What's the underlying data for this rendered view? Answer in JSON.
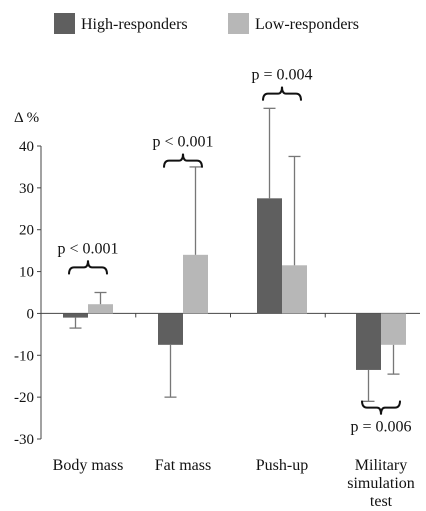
{
  "chart_data": {
    "type": "bar",
    "ylabel": "Δ %",
    "ylim": [
      -30,
      40
    ],
    "yticks": [
      40,
      30,
      20,
      10,
      0,
      -10,
      -20,
      -30
    ],
    "categories": [
      "Body mass",
      "Fat mass",
      "Push-up",
      "Military simulation test"
    ],
    "category_lines": [
      [
        "Body mass"
      ],
      [
        "Fat mass"
      ],
      [
        "Push-up"
      ],
      [
        "Military",
        "simulation",
        "test"
      ]
    ],
    "legend_position": "top",
    "series": [
      {
        "name": "High-responders",
        "color": "#5f5f5f",
        "values": [
          -1,
          -7.5,
          27.5,
          -13.5
        ],
        "error_low": [
          -3.5,
          -20,
          null,
          -21
        ],
        "error_high": [
          null,
          null,
          49,
          null
        ]
      },
      {
        "name": "Low-responders",
        "color": "#b7b7b7",
        "values": [
          2.2,
          14,
          11.5,
          -7.5
        ],
        "error_low": [
          null,
          null,
          null,
          -14.5
        ],
        "error_high": [
          5,
          35,
          37.5,
          null
        ]
      }
    ],
    "annotations": [
      {
        "category": 0,
        "text": "p < 0.001",
        "value": 11,
        "side": "above"
      },
      {
        "category": 1,
        "text": "p < 0.001",
        "value": 36.5,
        "side": "above"
      },
      {
        "category": 2,
        "text": "p = 0.004",
        "value": 52.5,
        "side": "above"
      },
      {
        "category": 3,
        "text": "p = 0.006",
        "value": -22.5,
        "side": "below"
      }
    ]
  }
}
